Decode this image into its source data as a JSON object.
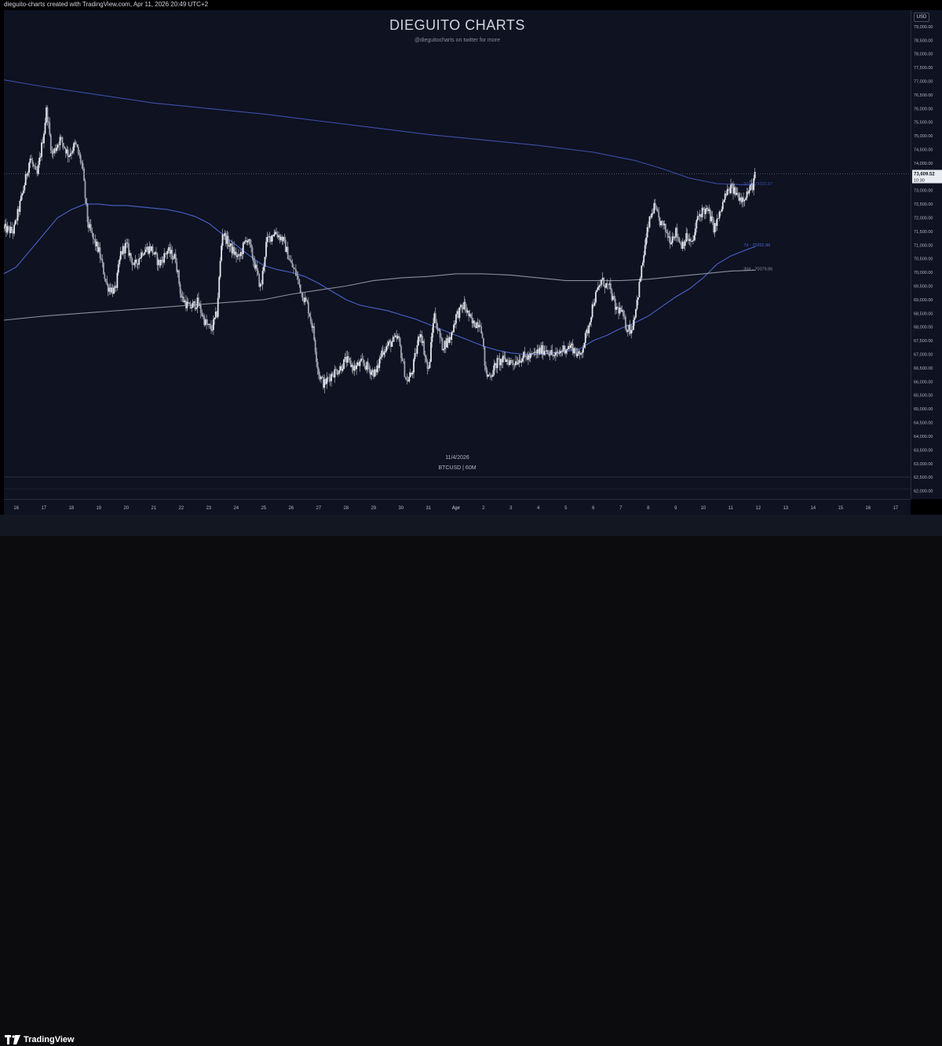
{
  "header": {
    "credit": "dieguito-charts created with TradingView.com, Apr 11, 2026 20:49 UTC+2"
  },
  "watermark": {
    "title": "DIEGUITO CHARTS",
    "subtitle": "@dieguitocharts on twitter for more",
    "date": "11/4/2026",
    "symbol": "BTCUSD | 60M"
  },
  "footer": {
    "brand": "TradingView"
  },
  "chart_data": {
    "type": "candlestick",
    "symbol": "BTCUSD",
    "interval": "60M",
    "currency_label": "USD",
    "ylim": [
      61700,
      79600
    ],
    "y_ticks": [
      62000,
      62500,
      63000,
      63500,
      64000,
      64500,
      65000,
      65500,
      66000,
      66500,
      67000,
      67500,
      68000,
      68500,
      69000,
      69500,
      70000,
      70500,
      71000,
      71500,
      72000,
      72500,
      73000,
      73500,
      74000,
      74500,
      75000,
      75500,
      76000,
      76500,
      77000,
      77500,
      78000,
      78500,
      79000
    ],
    "y_tick_labels": [
      "62,000.00",
      "62,500.00",
      "63,000.00",
      "63,500.00",
      "64,000.00",
      "64,500.00",
      "65,000.00",
      "65,500.00",
      "66,000.00",
      "66,500.00",
      "67,000.00",
      "67,500.00",
      "68,000.00",
      "68,500.00",
      "69,000.00",
      "69,500.00",
      "70,000.00",
      "70,500.00",
      "71,000.00",
      "71,500.00",
      "72,000.00",
      "72,500.00",
      "73,000.00",
      "73,500.00",
      "74,000.00",
      "74,500.00",
      "75,000.00",
      "75,500.00",
      "76,000.00",
      "76,500.00",
      "77,000.00",
      "77,500.00",
      "78,000.00",
      "78,500.00",
      "79,000.00"
    ],
    "x_days": [
      15.55,
      17.15
    ],
    "x_ticks": [
      {
        "day": 16,
        "label": "16"
      },
      {
        "day": 17,
        "label": "17"
      },
      {
        "day": 18,
        "label": "18"
      },
      {
        "day": 19,
        "label": "19"
      },
      {
        "day": 20,
        "label": "20"
      },
      {
        "day": 21,
        "label": "21"
      },
      {
        "day": 22,
        "label": "22"
      },
      {
        "day": 23,
        "label": "23"
      },
      {
        "day": 24,
        "label": "24"
      },
      {
        "day": 25,
        "label": "25"
      },
      {
        "day": 26,
        "label": "26"
      },
      {
        "day": 27,
        "label": "27"
      },
      {
        "day": 28,
        "label": "28"
      },
      {
        "day": 29,
        "label": "29"
      },
      {
        "day": 30,
        "label": "30"
      },
      {
        "day": 31,
        "label": "31"
      },
      {
        "day": 32,
        "label": "Apr"
      },
      {
        "day": 33,
        "label": "2"
      },
      {
        "day": 34,
        "label": "3"
      },
      {
        "day": 35,
        "label": "4"
      },
      {
        "day": 36,
        "label": "5"
      },
      {
        "day": 37,
        "label": "6"
      },
      {
        "day": 38,
        "label": "7"
      },
      {
        "day": 39,
        "label": "8"
      },
      {
        "day": 40,
        "label": "9"
      },
      {
        "day": 41,
        "label": "10"
      },
      {
        "day": 42,
        "label": "11"
      },
      {
        "day": 43,
        "label": "12"
      },
      {
        "day": 44,
        "label": "13"
      },
      {
        "day": 45,
        "label": "14"
      },
      {
        "day": 46,
        "label": "15"
      },
      {
        "day": 47,
        "label": "16"
      },
      {
        "day": 48,
        "label": "17"
      }
    ],
    "price_path": [
      [
        15.55,
        71600
      ],
      [
        15.9,
        71500
      ],
      [
        16.25,
        73000
      ],
      [
        16.5,
        74200
      ],
      [
        16.75,
        73500
      ],
      [
        17.0,
        75100
      ],
      [
        17.1,
        76000
      ],
      [
        17.3,
        74300
      ],
      [
        17.6,
        74900
      ],
      [
        17.9,
        74300
      ],
      [
        18.15,
        74700
      ],
      [
        18.4,
        73900
      ],
      [
        18.6,
        71800
      ],
      [
        18.8,
        71200
      ],
      [
        19.0,
        70800
      ],
      [
        19.3,
        69500
      ],
      [
        19.6,
        69300
      ],
      [
        19.8,
        70700
      ],
      [
        20.0,
        71000
      ],
      [
        20.3,
        70200
      ],
      [
        20.6,
        70800
      ],
      [
        20.9,
        70900
      ],
      [
        21.2,
        70300
      ],
      [
        21.5,
        70800
      ],
      [
        21.8,
        70500
      ],
      [
        22.0,
        69100
      ],
      [
        22.3,
        68700
      ],
      [
        22.6,
        68900
      ],
      [
        22.9,
        68100
      ],
      [
        23.1,
        67900
      ],
      [
        23.3,
        68500
      ],
      [
        23.5,
        71500
      ],
      [
        23.8,
        70900
      ],
      [
        24.1,
        70500
      ],
      [
        24.4,
        71300
      ],
      [
        24.7,
        70200
      ],
      [
        24.9,
        69400
      ],
      [
        25.1,
        71100
      ],
      [
        25.4,
        71500
      ],
      [
        25.7,
        71200
      ],
      [
        26.0,
        70300
      ],
      [
        26.2,
        69900
      ],
      [
        26.4,
        69200
      ],
      [
        26.6,
        68800
      ],
      [
        26.8,
        67900
      ],
      [
        27.0,
        66300
      ],
      [
        27.2,
        65900
      ],
      [
        27.5,
        66300
      ],
      [
        27.8,
        66500
      ],
      [
        28.0,
        66800
      ],
      [
        28.3,
        66500
      ],
      [
        28.6,
        66700
      ],
      [
        28.9,
        66400
      ],
      [
        29.1,
        66300
      ],
      [
        29.3,
        67100
      ],
      [
        29.6,
        67400
      ],
      [
        29.9,
        67600
      ],
      [
        30.2,
        66000
      ],
      [
        30.4,
        66300
      ],
      [
        30.7,
        67900
      ],
      [
        31.0,
        66300
      ],
      [
        31.2,
        68500
      ],
      [
        31.5,
        67300
      ],
      [
        31.8,
        67600
      ],
      [
        32.0,
        68400
      ],
      [
        32.3,
        68800
      ],
      [
        32.6,
        68100
      ],
      [
        32.9,
        68200
      ],
      [
        33.1,
        66200
      ],
      [
        33.3,
        66300
      ],
      [
        33.5,
        66700
      ],
      [
        33.8,
        66800
      ],
      [
        34.1,
        66700
      ],
      [
        34.4,
        66900
      ],
      [
        34.7,
        66900
      ],
      [
        35.0,
        67100
      ],
      [
        35.3,
        67200
      ],
      [
        35.6,
        66900
      ],
      [
        35.9,
        67200
      ],
      [
        36.2,
        67300
      ],
      [
        36.5,
        66900
      ],
      [
        36.8,
        67900
      ],
      [
        37.0,
        68900
      ],
      [
        37.3,
        69700
      ],
      [
        37.6,
        69400
      ],
      [
        37.8,
        68700
      ],
      [
        38.0,
        68600
      ],
      [
        38.2,
        68000
      ],
      [
        38.4,
        67900
      ],
      [
        38.6,
        69000
      ],
      [
        38.8,
        70400
      ],
      [
        39.0,
        71700
      ],
      [
        39.2,
        72400
      ],
      [
        39.4,
        71900
      ],
      [
        39.6,
        71600
      ],
      [
        39.8,
        71200
      ],
      [
        40.0,
        71500
      ],
      [
        40.2,
        71000
      ],
      [
        40.4,
        71300
      ],
      [
        40.6,
        71000
      ],
      [
        40.8,
        72000
      ],
      [
        41.0,
        72300
      ],
      [
        41.2,
        72200
      ],
      [
        41.4,
        71600
      ],
      [
        41.6,
        72100
      ],
      [
        41.8,
        72800
      ],
      [
        42.0,
        73100
      ],
      [
        42.2,
        72900
      ],
      [
        42.4,
        72700
      ],
      [
        42.6,
        72900
      ],
      [
        42.8,
        73200
      ],
      [
        42.9,
        73600
      ]
    ],
    "current_price": 73609.52,
    "current_price_label": "73,609.52",
    "countdown": "10:30",
    "series": [
      {
        "name": "90d",
        "label": "90d - 73192.87",
        "color": "#3a4fa8",
        "points": [
          [
            15.55,
            77050
          ],
          [
            17.0,
            76800
          ],
          [
            19.0,
            76500
          ],
          [
            21.0,
            76200
          ],
          [
            23.0,
            76000
          ],
          [
            25.0,
            75800
          ],
          [
            27.0,
            75550
          ],
          [
            29.0,
            75300
          ],
          [
            31.0,
            75050
          ],
          [
            33.0,
            74850
          ],
          [
            35.0,
            74650
          ],
          [
            37.0,
            74400
          ],
          [
            38.5,
            74100
          ],
          [
            39.5,
            73800
          ],
          [
            40.5,
            73450
          ],
          [
            41.5,
            73250
          ],
          [
            42.9,
            73190
          ]
        ]
      },
      {
        "name": "7d",
        "label": "7d - 70952.88",
        "color": "#4a63c8",
        "points": [
          [
            15.55,
            69950
          ],
          [
            16.0,
            70200
          ],
          [
            16.5,
            70800
          ],
          [
            17.0,
            71400
          ],
          [
            17.5,
            72000
          ],
          [
            18.0,
            72300
          ],
          [
            18.5,
            72500
          ],
          [
            19.0,
            72500
          ],
          [
            19.5,
            72450
          ],
          [
            20.0,
            72450
          ],
          [
            20.5,
            72400
          ],
          [
            21.0,
            72350
          ],
          [
            21.5,
            72300
          ],
          [
            22.0,
            72200
          ],
          [
            22.5,
            72050
          ],
          [
            23.0,
            71800
          ],
          [
            23.5,
            71400
          ],
          [
            24.0,
            71000
          ],
          [
            24.5,
            70600
          ],
          [
            25.0,
            70250
          ],
          [
            25.5,
            70100
          ],
          [
            26.0,
            70000
          ],
          [
            26.5,
            69850
          ],
          [
            27.0,
            69600
          ],
          [
            27.5,
            69300
          ],
          [
            28.0,
            69000
          ],
          [
            28.5,
            68800
          ],
          [
            29.0,
            68700
          ],
          [
            29.5,
            68600
          ],
          [
            30.0,
            68450
          ],
          [
            30.5,
            68300
          ],
          [
            31.0,
            68100
          ],
          [
            31.5,
            67900
          ],
          [
            32.0,
            67700
          ],
          [
            32.5,
            67500
          ],
          [
            33.0,
            67300
          ],
          [
            33.5,
            67150
          ],
          [
            34.0,
            67050
          ],
          [
            34.5,
            67000
          ],
          [
            35.0,
            67000
          ],
          [
            35.5,
            67050
          ],
          [
            36.0,
            67100
          ],
          [
            36.5,
            67200
          ],
          [
            37.0,
            67500
          ],
          [
            37.5,
            67700
          ],
          [
            38.0,
            67950
          ],
          [
            38.5,
            68150
          ],
          [
            39.0,
            68400
          ],
          [
            39.5,
            68750
          ],
          [
            40.0,
            69100
          ],
          [
            40.5,
            69400
          ],
          [
            41.0,
            69800
          ],
          [
            41.5,
            70300
          ],
          [
            42.0,
            70600
          ],
          [
            42.5,
            70800
          ],
          [
            42.9,
            70950
          ]
        ]
      },
      {
        "name": "30d",
        "label": "30d - 70079.86",
        "color": "#8a8f9c",
        "points": [
          [
            15.55,
            68250
          ],
          [
            17.0,
            68400
          ],
          [
            19.0,
            68550
          ],
          [
            21.0,
            68700
          ],
          [
            23.0,
            68850
          ],
          [
            25.0,
            69000
          ],
          [
            26.0,
            69200
          ],
          [
            27.0,
            69350
          ],
          [
            28.0,
            69500
          ],
          [
            29.0,
            69700
          ],
          [
            30.0,
            69800
          ],
          [
            31.0,
            69850
          ],
          [
            32.0,
            69950
          ],
          [
            33.0,
            69950
          ],
          [
            34.0,
            69900
          ],
          [
            35.0,
            69800
          ],
          [
            36.0,
            69700
          ],
          [
            37.0,
            69700
          ],
          [
            38.0,
            69700
          ],
          [
            39.0,
            69750
          ],
          [
            40.0,
            69850
          ],
          [
            41.0,
            69950
          ],
          [
            42.0,
            70050
          ],
          [
            42.9,
            70080
          ]
        ]
      }
    ]
  }
}
